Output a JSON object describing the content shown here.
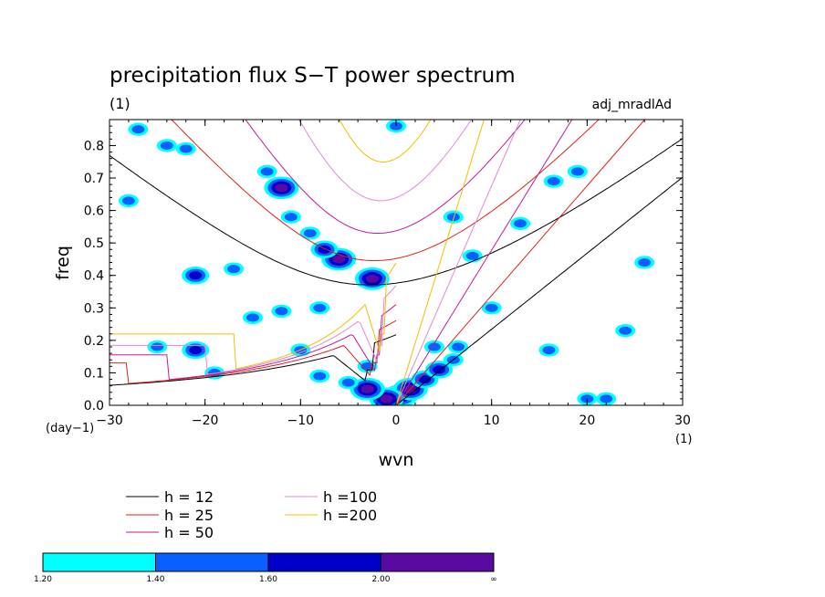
{
  "chart_data": {
    "type": "heatmap",
    "title": "precipitation flux S−T power spectrum",
    "units_label": "(1)",
    "model_label": "adj_mradlAd",
    "xlabel": "wvn",
    "ylabel": "freq",
    "x_unit_label": "(1)",
    "y_unit_label": "(day−1)",
    "xlim": [
      -30,
      30
    ],
    "ylim": [
      0,
      0.88
    ],
    "x_ticks": [
      -30,
      -20,
      -10,
      0,
      10,
      20,
      30
    ],
    "x_tick_labels": [
      "−30",
      "−20",
      "−10",
      "0",
      "10",
      "20",
      "30"
    ],
    "y_ticks": [
      0.0,
      0.1,
      0.2,
      0.3,
      0.4,
      0.5,
      0.6,
      0.7,
      0.8
    ],
    "y_tick_labels": [
      "0.0",
      "0.1",
      "0.2",
      "0.3",
      "0.4",
      "0.5",
      "0.6",
      "0.7",
      "0.8"
    ],
    "dispersion_curves": [
      {
        "label": "h = 12",
        "h": 12,
        "color": "#000000"
      },
      {
        "label": "h = 25",
        "h": 25,
        "color": "#e0201c"
      },
      {
        "label": "h = 50",
        "h": 50,
        "color": "#c21a9a"
      },
      {
        "label": "h =100",
        "h": 100,
        "color": "#e08ad8"
      },
      {
        "label": "h =200",
        "h": 200,
        "color": "#f0c000"
      }
    ],
    "colorbar": {
      "colors": [
        "#00ffff",
        "#0a5fff",
        "#0000c8",
        "#5a0aa0"
      ],
      "labels": [
        "1.20",
        "1.40",
        "1.60",
        "2.00",
        "∞"
      ]
    },
    "hotspots": [
      {
        "x": 0.5,
        "y": 0.03,
        "level": 3
      },
      {
        "x": 1.5,
        "y": 0.05,
        "level": 3
      },
      {
        "x": 3,
        "y": 0.08,
        "level": 2
      },
      {
        "x": 4.5,
        "y": 0.11,
        "level": 2
      },
      {
        "x": 6,
        "y": 0.14,
        "level": 1
      },
      {
        "x": 4,
        "y": 0.18,
        "level": 1
      },
      {
        "x": 6.5,
        "y": 0.18,
        "level": 1
      },
      {
        "x": 10,
        "y": 0.3,
        "level": 1
      },
      {
        "x": -1,
        "y": 0.02,
        "level": 3
      },
      {
        "x": -3,
        "y": 0.05,
        "level": 3
      },
      {
        "x": -5,
        "y": 0.07,
        "level": 1
      },
      {
        "x": -2.5,
        "y": 0.39,
        "level": 3
      },
      {
        "x": -6,
        "y": 0.45,
        "level": 3
      },
      {
        "x": -7.5,
        "y": 0.48,
        "level": 2
      },
      {
        "x": -9,
        "y": 0.53,
        "level": 1
      },
      {
        "x": -11,
        "y": 0.58,
        "level": 1
      },
      {
        "x": -12,
        "y": 0.67,
        "level": 3
      },
      {
        "x": -13.5,
        "y": 0.72,
        "level": 1
      },
      {
        "x": -12,
        "y": 0.29,
        "level": 1
      },
      {
        "x": -15,
        "y": 0.27,
        "level": 1
      },
      {
        "x": -21,
        "y": 0.4,
        "level": 2
      },
      {
        "x": -17,
        "y": 0.42,
        "level": 1
      },
      {
        "x": -8,
        "y": 0.3,
        "level": 1
      },
      {
        "x": -21,
        "y": 0.17,
        "level": 2
      },
      {
        "x": -25,
        "y": 0.18,
        "level": 1
      },
      {
        "x": -10,
        "y": 0.17,
        "level": 1
      },
      {
        "x": -28,
        "y": 0.63,
        "level": 1
      },
      {
        "x": -24,
        "y": 0.8,
        "level": 1
      },
      {
        "x": 20,
        "y": 0.02,
        "level": 1
      },
      {
        "x": 22,
        "y": 0.02,
        "level": 1
      },
      {
        "x": 19,
        "y": 0.72,
        "level": 1
      },
      {
        "x": 16.5,
        "y": 0.69,
        "level": 1
      },
      {
        "x": 26,
        "y": 0.44,
        "level": 1
      },
      {
        "x": 8,
        "y": 0.46,
        "level": 1
      },
      {
        "x": 6,
        "y": 0.58,
        "level": 1
      },
      {
        "x": -27,
        "y": 0.85,
        "level": 1
      },
      {
        "x": -3,
        "y": 0.12,
        "level": 1
      },
      {
        "x": -19,
        "y": 0.1,
        "level": 1
      },
      {
        "x": -8,
        "y": 0.09,
        "level": 1
      },
      {
        "x": 24,
        "y": 0.23,
        "level": 1
      },
      {
        "x": 0,
        "y": 0.86,
        "level": 1
      },
      {
        "x": 13,
        "y": 0.56,
        "level": 1
      },
      {
        "x": -22,
        "y": 0.79,
        "level": 1
      },
      {
        "x": 16,
        "y": 0.17,
        "level": 1
      }
    ]
  }
}
